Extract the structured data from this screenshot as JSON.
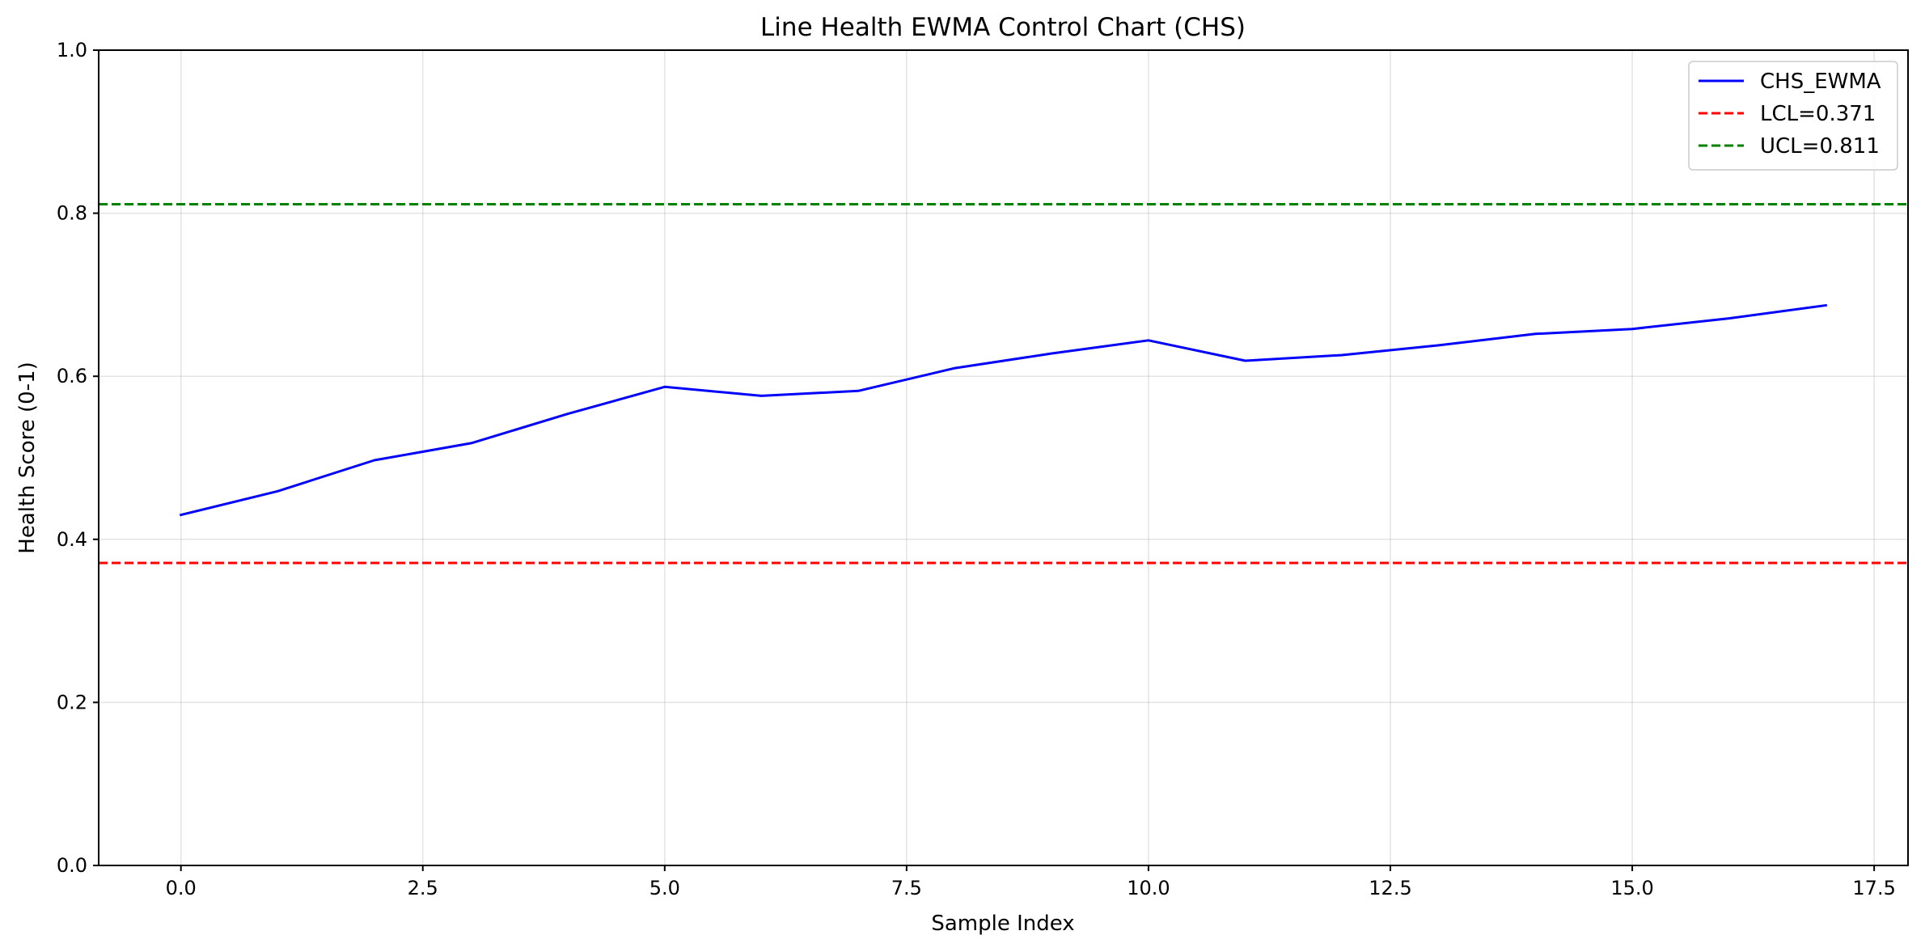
{
  "chart_data": {
    "type": "line",
    "title": "Line Health EWMA Control Chart (CHS)",
    "xlabel": "Sample Index",
    "ylabel": "Health Score (0-1)",
    "xlim": [
      -0.85,
      17.85
    ],
    "ylim": [
      0.0,
      1.0
    ],
    "x_ticks": [
      0.0,
      2.5,
      5.0,
      7.5,
      10.0,
      12.5,
      15.0,
      17.5
    ],
    "x_tick_labels": [
      "0.0",
      "2.5",
      "5.0",
      "7.5",
      "10.0",
      "12.5",
      "15.0",
      "17.5"
    ],
    "y_ticks": [
      0.0,
      0.2,
      0.4,
      0.6,
      0.8,
      1.0
    ],
    "y_tick_labels": [
      "0.0",
      "0.2",
      "0.4",
      "0.6",
      "0.8",
      "1.0"
    ],
    "grid": true,
    "legend_position": "top-right",
    "series": [
      {
        "name": "CHS_EWMA",
        "color": "#0000ff",
        "style": "solid",
        "x": [
          0,
          1,
          2,
          3,
          4,
          5,
          6,
          7,
          8,
          9,
          10,
          11,
          12,
          13,
          14,
          15,
          16,
          17
        ],
        "values": [
          0.43,
          0.459,
          0.497,
          0.518,
          0.554,
          0.587,
          0.576,
          0.582,
          0.61,
          0.628,
          0.644,
          0.619,
          0.626,
          0.638,
          0.652,
          0.658,
          0.671,
          0.687
        ]
      }
    ],
    "reference_lines": [
      {
        "name": "LCL=0.371",
        "value": 0.371,
        "color": "#ff0000",
        "style": "dashed"
      },
      {
        "name": "UCL=0.811",
        "value": 0.811,
        "color": "#008000",
        "style": "dashed"
      }
    ]
  }
}
